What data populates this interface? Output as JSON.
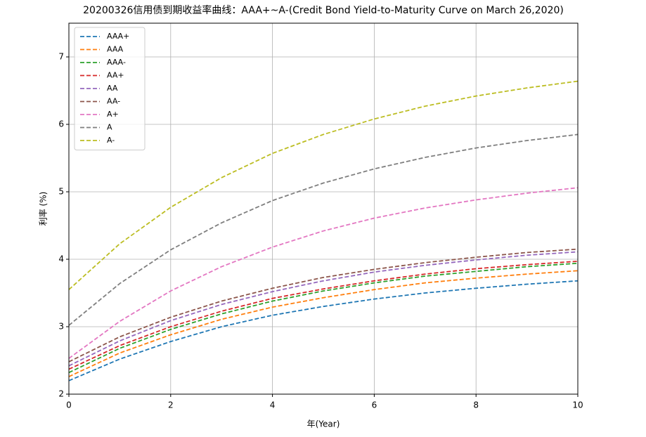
{
  "chart_data": {
    "type": "line",
    "title": "20200326信用债到期收益率曲线：AAA+~A-(Credit Bond Yield-to-Maturity Curve on March 26,2020)",
    "x_label": "年(Year)",
    "y_label": "利率 (%)",
    "x": [
      0,
      1,
      2,
      3,
      4,
      5,
      6,
      7,
      8,
      9,
      10
    ],
    "series": [
      {
        "name": "AAA+",
        "color": "#1f77b4",
        "values": [
          2.2,
          2.52,
          2.78,
          3.0,
          3.17,
          3.3,
          3.41,
          3.5,
          3.57,
          3.63,
          3.68
        ]
      },
      {
        "name": "AAA",
        "color": "#ff7f0e",
        "values": [
          2.26,
          2.61,
          2.88,
          3.11,
          3.29,
          3.43,
          3.55,
          3.65,
          3.72,
          3.78,
          3.83
        ]
      },
      {
        "name": "AAA-",
        "color": "#2ca02c",
        "values": [
          2.32,
          2.68,
          2.96,
          3.19,
          3.38,
          3.53,
          3.65,
          3.75,
          3.82,
          3.89,
          3.94
        ]
      },
      {
        "name": "AA+",
        "color": "#d62728",
        "values": [
          2.37,
          2.72,
          3.0,
          3.23,
          3.42,
          3.56,
          3.68,
          3.78,
          3.86,
          3.92,
          3.97
        ]
      },
      {
        "name": "AA",
        "color": "#9467bd",
        "values": [
          2.42,
          2.79,
          3.09,
          3.33,
          3.52,
          3.68,
          3.81,
          3.91,
          3.99,
          4.06,
          4.11
        ]
      },
      {
        "name": "AA-",
        "color": "#8c564b",
        "values": [
          2.48,
          2.85,
          3.14,
          3.38,
          3.57,
          3.73,
          3.85,
          3.95,
          4.03,
          4.1,
          4.15
        ]
      },
      {
        "name": "A+",
        "color": "#e377c2",
        "values": [
          2.53,
          3.08,
          3.53,
          3.89,
          4.18,
          4.42,
          4.61,
          4.76,
          4.88,
          4.98,
          5.06
        ]
      },
      {
        "name": "A",
        "color": "#7f7f7f",
        "values": [
          3.02,
          3.64,
          4.14,
          4.54,
          4.87,
          5.13,
          5.34,
          5.51,
          5.65,
          5.76,
          5.85
        ]
      },
      {
        "name": "A-",
        "color": "#bcbd22",
        "values": [
          3.55,
          4.23,
          4.77,
          5.21,
          5.57,
          5.85,
          6.08,
          6.27,
          6.42,
          6.54,
          6.64
        ]
      }
    ],
    "xlim": [
      0,
      10
    ],
    "xticks": [
      0,
      2,
      4,
      6,
      8,
      10
    ],
    "ylim": [
      2,
      7.5
    ],
    "yticks": [
      2,
      3,
      4,
      5,
      6,
      7
    ],
    "grid": true,
    "legend": "upper-left",
    "line_style": "dashed"
  }
}
